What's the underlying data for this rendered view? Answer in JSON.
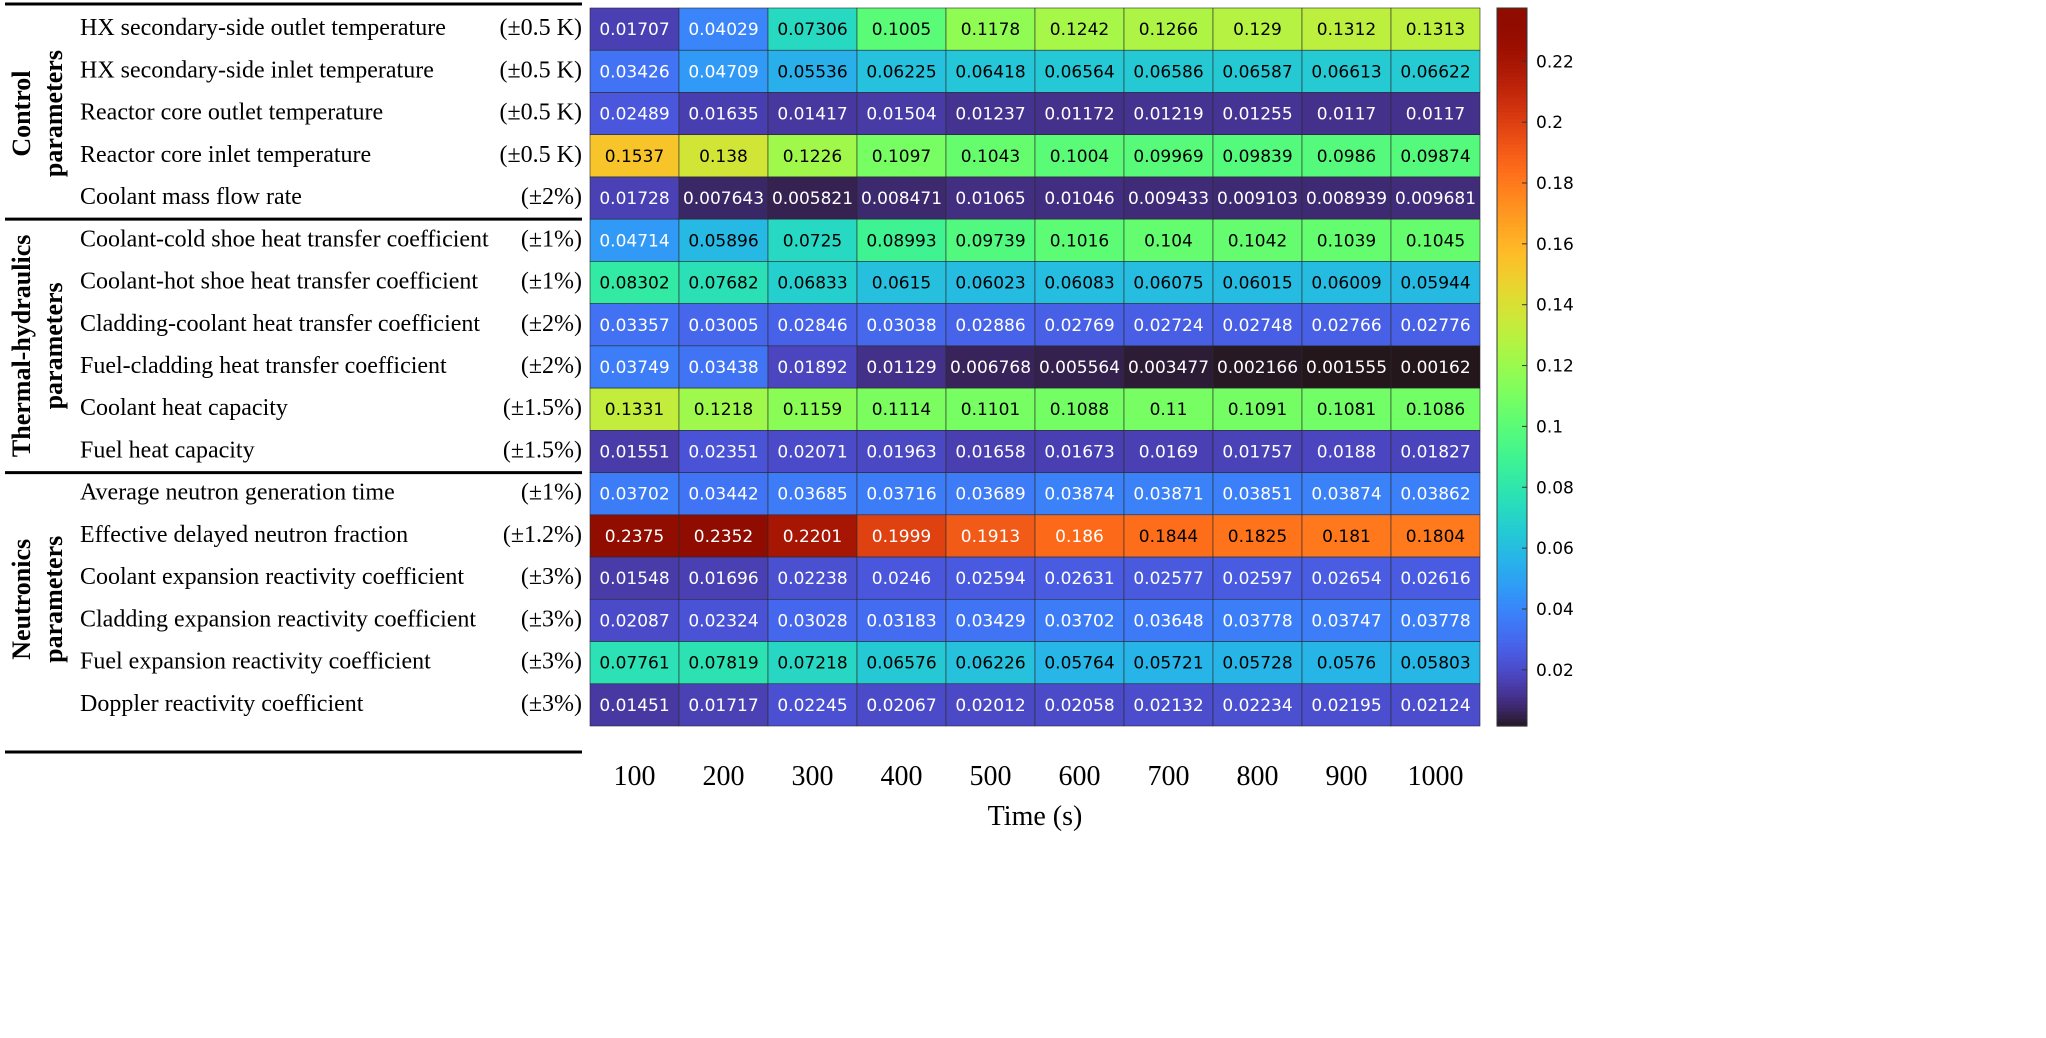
{
  "chart_data": {
    "type": "heatmap",
    "title": "",
    "xlabel": "Time (s)",
    "ylabel": "",
    "x": [
      "100",
      "200",
      "300",
      "400",
      "500",
      "600",
      "700",
      "800",
      "900",
      "1000"
    ],
    "groups": [
      {
        "name": "Control parameters",
        "lines": [
          "Control",
          "parameters"
        ]
      },
      {
        "name": "Thermal-hydraulics parameters",
        "lines": [
          "Thermal-hydraulics",
          "parameters"
        ]
      },
      {
        "name": "Neutronics parameters",
        "lines": [
          "Neutronics",
          "parameters"
        ]
      }
    ],
    "rows": [
      {
        "group": "Control parameters",
        "label": "HX secondary-side outlet temperature",
        "uncertainty": "(±0.5 K)",
        "values": [
          0.01707,
          0.04029,
          0.07306,
          0.1005,
          0.1178,
          0.1242,
          0.1266,
          0.129,
          0.1312,
          0.1313
        ]
      },
      {
        "group": "Control parameters",
        "label": "HX secondary-side inlet temperature",
        "uncertainty": "(±0.5 K)",
        "values": [
          0.03426,
          0.04709,
          0.05536,
          0.06225,
          0.06418,
          0.06564,
          0.06586,
          0.06587,
          0.06613,
          0.06622
        ]
      },
      {
        "group": "Control parameters",
        "label": "Reactor core outlet temperature",
        "uncertainty": "(±0.5 K)",
        "values": [
          0.02489,
          0.01635,
          0.01417,
          0.01504,
          0.01237,
          0.01172,
          0.01219,
          0.01255,
          0.0117,
          0.0117
        ]
      },
      {
        "group": "Control parameters",
        "label": "Reactor core inlet temperature",
        "uncertainty": "(±0.5 K)",
        "values": [
          0.1537,
          0.138,
          0.1226,
          0.1097,
          0.1043,
          0.1004,
          0.09969,
          0.09839,
          0.0986,
          0.09874
        ]
      },
      {
        "group": "Control parameters",
        "label": "Coolant mass flow rate",
        "uncertainty": "(±2%)",
        "values": [
          0.01728,
          0.007643,
          0.005821,
          0.008471,
          0.01065,
          0.01046,
          0.009433,
          0.009103,
          0.008939,
          0.009681
        ]
      },
      {
        "group": "Thermal-hydraulics parameters",
        "label": "Coolant-cold shoe heat transfer coefficient",
        "uncertainty": "(±1%)",
        "values": [
          0.04714,
          0.05896,
          0.0725,
          0.08993,
          0.09739,
          0.1016,
          0.104,
          0.1042,
          0.1039,
          0.1045
        ]
      },
      {
        "group": "Thermal-hydraulics parameters",
        "label": "Coolant-hot shoe heat transfer coefficient",
        "uncertainty": "(±1%)",
        "values": [
          0.08302,
          0.07682,
          0.06833,
          0.0615,
          0.06023,
          0.06083,
          0.06075,
          0.06015,
          0.06009,
          0.05944
        ]
      },
      {
        "group": "Thermal-hydraulics parameters",
        "label": "Cladding-coolant heat transfer coefficient",
        "uncertainty": "(±2%)",
        "values": [
          0.03357,
          0.03005,
          0.02846,
          0.03038,
          0.02886,
          0.02769,
          0.02724,
          0.02748,
          0.02766,
          0.02776
        ]
      },
      {
        "group": "Thermal-hydraulics parameters",
        "label": "Fuel-cladding heat transfer coefficient",
        "uncertainty": "(±2%)",
        "values": [
          0.03749,
          0.03438,
          0.01892,
          0.01129,
          0.006768,
          0.005564,
          0.003477,
          0.002166,
          0.001555,
          0.00162
        ]
      },
      {
        "group": "Thermal-hydraulics parameters",
        "label": "Coolant heat capacity",
        "uncertainty": "(±1.5%)",
        "values": [
          0.1331,
          0.1218,
          0.1159,
          0.1114,
          0.1101,
          0.1088,
          0.11,
          0.1091,
          0.1081,
          0.1086
        ]
      },
      {
        "group": "Thermal-hydraulics parameters",
        "label": "Fuel heat capacity",
        "uncertainty": "(±1.5%)",
        "values": [
          0.01551,
          0.02351,
          0.02071,
          0.01963,
          0.01658,
          0.01673,
          0.0169,
          0.01757,
          0.0188,
          0.01827
        ]
      },
      {
        "group": "Neutronics parameters",
        "label": "Average neutron generation time",
        "uncertainty": "(±1%)",
        "values": [
          0.03702,
          0.03442,
          0.03685,
          0.03716,
          0.03689,
          0.03874,
          0.03871,
          0.03851,
          0.03874,
          0.03862
        ]
      },
      {
        "group": "Neutronics parameters",
        "label": "Effective delayed neutron fraction",
        "uncertainty": "(±1.2%)",
        "values": [
          0.2375,
          0.2352,
          0.2201,
          0.1999,
          0.1913,
          0.186,
          0.1844,
          0.1825,
          0.181,
          0.1804
        ]
      },
      {
        "group": "Neutronics parameters",
        "label": "Coolant expansion reactivity coefficient",
        "uncertainty": "(±3%)",
        "values": [
          0.01548,
          0.01696,
          0.02238,
          0.0246,
          0.02594,
          0.02631,
          0.02577,
          0.02597,
          0.02654,
          0.02616
        ]
      },
      {
        "group": "Neutronics parameters",
        "label": "Cladding expansion reactivity coefficient",
        "uncertainty": "(±3%)",
        "values": [
          0.02087,
          0.02324,
          0.03028,
          0.03183,
          0.03429,
          0.03702,
          0.03648,
          0.03778,
          0.03747,
          0.03778
        ]
      },
      {
        "group": "Neutronics parameters",
        "label": "Fuel expansion reactivity coefficient",
        "uncertainty": "(±3%)",
        "values": [
          0.07761,
          0.07819,
          0.07218,
          0.06576,
          0.06226,
          0.05764,
          0.05721,
          0.05728,
          0.0576,
          0.05803
        ]
      },
      {
        "group": "Neutronics parameters",
        "label": "Doppler reactivity coefficient",
        "uncertainty": "(±3%)",
        "values": [
          0.01451,
          0.01717,
          0.02245,
          0.02067,
          0.02012,
          0.02058,
          0.02132,
          0.02234,
          0.02195,
          0.02124
        ]
      }
    ],
    "colorbar": {
      "range": [
        0.00155,
        0.2375
      ],
      "ticks": [
        "0.02",
        "0.04",
        "0.06",
        "0.08",
        "0.1",
        "0.12",
        "0.14",
        "0.16",
        "0.18",
        "0.2",
        "0.22"
      ],
      "placement": "right",
      "colormap": "turbo"
    },
    "grid": false,
    "legend": "none"
  }
}
